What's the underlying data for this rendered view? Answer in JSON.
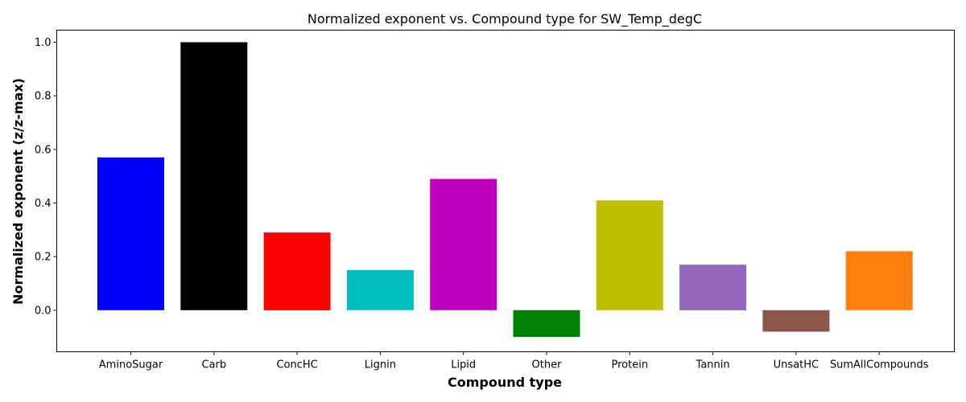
{
  "chart_data": {
    "type": "bar",
    "title": "Normalized exponent vs. Compound type for SW_Temp_degC",
    "xlabel": "Compound type",
    "ylabel": "Normalized exponent (z/z-max)",
    "categories": [
      "AminoSugar",
      "Carb",
      "ConcHC",
      "Lignin",
      "Lipid",
      "Other",
      "Protein",
      "Tannin",
      "UnsatHC",
      "SumAllCompounds"
    ],
    "values": [
      0.57,
      1.0,
      0.29,
      0.15,
      0.49,
      -0.1,
      0.41,
      0.17,
      -0.08,
      0.22
    ],
    "colors": [
      "#0000ff",
      "#000000",
      "#ff0000",
      "#00bfbf",
      "#bf00bf",
      "#008000",
      "#bfbf00",
      "#9467bd",
      "#8c564b",
      "#ff7f0e"
    ],
    "ylim": [
      -0.155,
      1.045
    ],
    "yticks": [
      0.0,
      0.2,
      0.4,
      0.6,
      0.8,
      1.0
    ],
    "ytick_labels": [
      "0.0",
      "0.2",
      "0.4",
      "0.6",
      "0.8",
      "1.0"
    ],
    "grid": false,
    "legend": "none"
  }
}
